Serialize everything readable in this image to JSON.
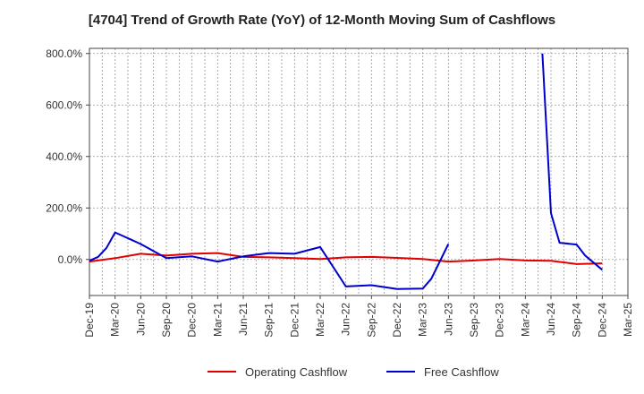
{
  "chart_data": {
    "type": "line",
    "title": "[4704]  Trend of Growth Rate (YoY) of 12-Month Moving Sum of Cashflows",
    "xlabel": "",
    "ylabel": "",
    "ylim": [
      -140,
      820
    ],
    "y_ticks": [
      0,
      200,
      400,
      600,
      800
    ],
    "y_tick_labels": [
      "0.0%",
      "200.0%",
      "400.0%",
      "600.0%",
      "800.0%"
    ],
    "x_ticks": [
      "Dec-19",
      "Mar-20",
      "Jun-20",
      "Sep-20",
      "Dec-20",
      "Mar-21",
      "Jun-21",
      "Sep-21",
      "Dec-21",
      "Mar-22",
      "Jun-22",
      "Sep-22",
      "Dec-22",
      "Mar-23",
      "Jun-23",
      "Sep-23",
      "Dec-23",
      "Mar-24",
      "Jun-24",
      "Sep-24",
      "Dec-24",
      "Mar-25"
    ],
    "grid": true,
    "legend_position": "bottom",
    "series": [
      {
        "name": "Operating Cashflow",
        "color": "#e00000",
        "points": [
          [
            "Dec-19",
            -8
          ],
          [
            "Mar-20",
            5
          ],
          [
            "Jun-20",
            22
          ],
          [
            "Sep-20",
            15
          ],
          [
            "Dec-20",
            22
          ],
          [
            "Mar-21",
            25
          ],
          [
            "Jun-21",
            10
          ],
          [
            "Sep-21",
            8
          ],
          [
            "Dec-21",
            5
          ],
          [
            "Mar-22",
            2
          ],
          [
            "Jun-22",
            8
          ],
          [
            "Sep-22",
            10
          ],
          [
            "Dec-22",
            6
          ],
          [
            "Mar-23",
            2
          ],
          [
            "Jun-23",
            -8
          ],
          [
            "Sep-23",
            -4
          ],
          [
            "Dec-23",
            2
          ],
          [
            "Mar-24",
            -4
          ],
          [
            "Jun-24",
            -5
          ],
          [
            "Sep-24",
            -18
          ],
          [
            "Dec-24",
            -15
          ]
        ]
      },
      {
        "name": "Free Cashflow",
        "color": "#0000cc",
        "points": [
          [
            "Dec-19",
            -5
          ],
          [
            "Jan-20",
            10
          ],
          [
            "Feb-20",
            45
          ],
          [
            "Mar-20",
            105
          ],
          [
            "Apr-20",
            90
          ],
          [
            "May-20",
            75
          ],
          [
            "Jun-20",
            60
          ],
          [
            "Sep-20",
            5
          ],
          [
            "Dec-20",
            12
          ],
          [
            "Mar-21",
            -8
          ],
          [
            "Jun-21",
            12
          ],
          [
            "Sep-21",
            25
          ],
          [
            "Dec-21",
            22
          ],
          [
            "Mar-22",
            48
          ],
          [
            "Jun-22",
            -105
          ],
          [
            "Sep-22",
            -100
          ],
          [
            "Dec-22",
            -115
          ],
          [
            "Mar-23",
            -113
          ],
          [
            "Apr-23",
            -75
          ],
          [
            "Jun-23",
            60
          ],
          null,
          [
            "May-24",
            800
          ],
          [
            "Jun-24",
            180
          ],
          [
            "Jul-24",
            65
          ],
          [
            "Sep-24",
            58
          ],
          [
            "Oct-24",
            15
          ],
          [
            "Dec-24",
            -40
          ]
        ]
      }
    ]
  }
}
